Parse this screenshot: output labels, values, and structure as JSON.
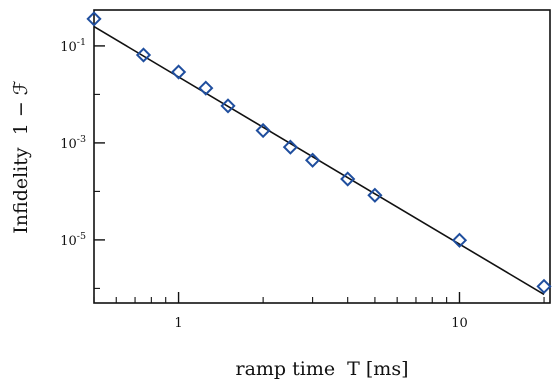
{
  "chart_data": {
    "type": "scatter",
    "title": "",
    "xlabel": "ramp time  T [ms]",
    "ylabel": "Infidelity  1 − ℱ",
    "xscale": "log",
    "yscale": "log",
    "xlim": [
      0.5,
      21
    ],
    "ylim": [
      5e-07,
      0.55
    ],
    "grid": false,
    "x_ticks": [
      {
        "value": 1,
        "label": "1"
      },
      {
        "value": 10,
        "label": "10"
      }
    ],
    "y_ticks": [
      {
        "value": 0.1,
        "base": "10",
        "exp": "-1"
      },
      {
        "value": 0.001,
        "base": "10",
        "exp": "-3"
      },
      {
        "value": 1e-05,
        "base": "10",
        "exp": "-5"
      }
    ],
    "marker_color": "#1f4e9e",
    "fit_color": "#111111",
    "series": [
      {
        "marker": "diamond-open",
        "points": [
          {
            "x": 0.5,
            "y": 0.36
          },
          {
            "x": 0.75,
            "y": 0.065
          },
          {
            "x": 1.0,
            "y": 0.029
          },
          {
            "x": 1.25,
            "y": 0.0135
          },
          {
            "x": 1.5,
            "y": 0.0058
          },
          {
            "x": 2.0,
            "y": 0.0018
          },
          {
            "x": 2.5,
            "y": 0.00082
          },
          {
            "x": 3.0,
            "y": 0.00044
          },
          {
            "x": 4.0,
            "y": 0.00018
          },
          {
            "x": 5.0,
            "y": 8.3e-05
          },
          {
            "x": 10.0,
            "y": 9.8e-06
          },
          {
            "x": 20.0,
            "y": 1.1e-06
          }
        ]
      }
    ],
    "fit_line": {
      "x": [
        0.5,
        20.0
      ],
      "y": [
        0.25,
        7.5e-07
      ]
    }
  }
}
